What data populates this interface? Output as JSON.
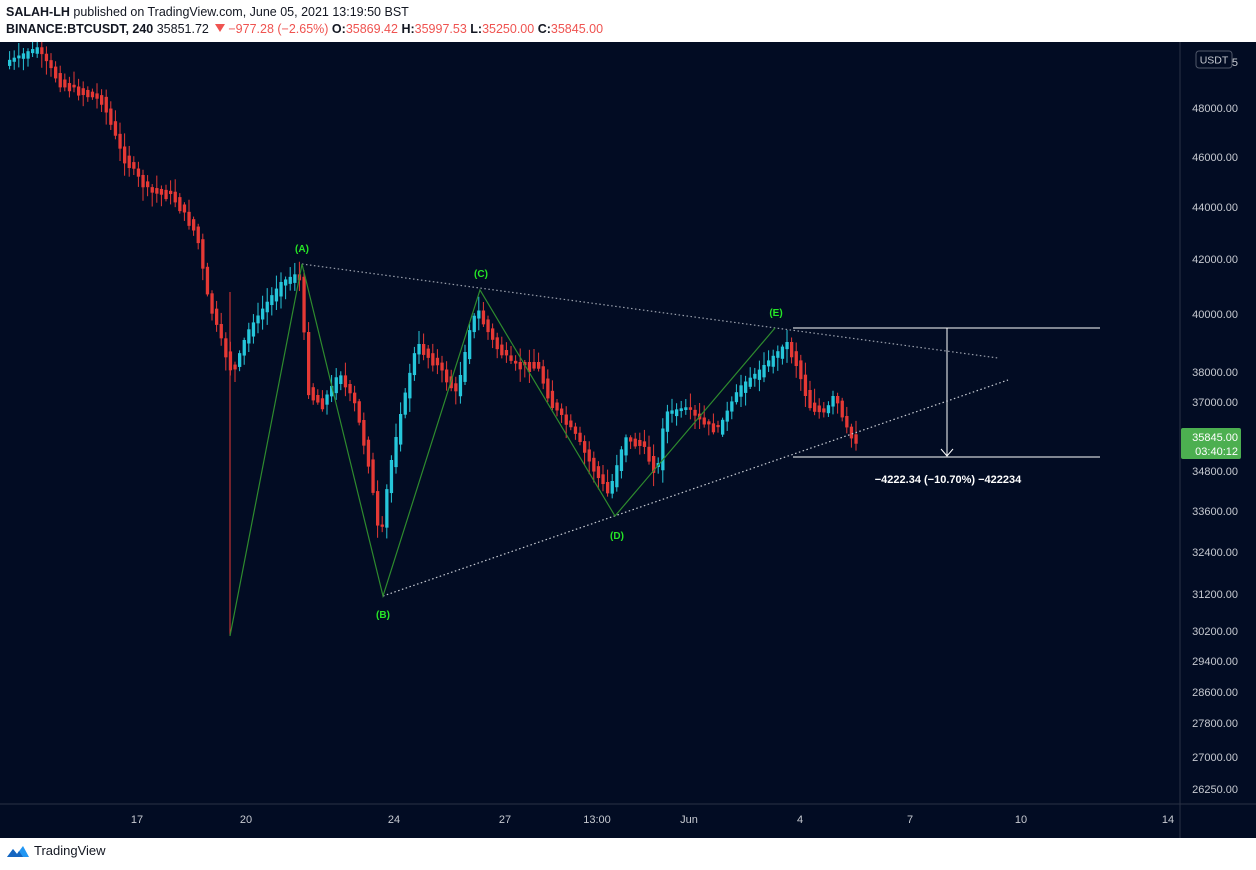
{
  "header": {
    "author": "SALAH-LH",
    "published_text": "published on TradingView.com, June 05, 2021 13:19:50 BST",
    "symbol": "BINANCE:BTCUSDT, 240",
    "last": "35851.72",
    "change": "−977.28 (−2.65%)",
    "open_label": "O:",
    "open": "35869.42",
    "high_label": "H:",
    "high": "35997.53",
    "low_label": "L:",
    "low": "35250.00",
    "close_label": "C:",
    "close": "35845.00"
  },
  "price_scale": {
    "currency": "USDT",
    "ticks": [
      "5",
      "48000.00",
      "46000.00",
      "44000.00",
      "42000.00",
      "40000.00",
      "38000.00",
      "37000.00",
      "34800.00",
      "33600.00",
      "32400.00",
      "31200.00",
      "30200.00",
      "29400.00",
      "28600.00",
      "27800.00",
      "27000.00",
      "26250.00"
    ],
    "current_price": "35845.00",
    "countdown": "03:40:12"
  },
  "time_axis": {
    "ticks": [
      "17",
      "20",
      "24",
      "27",
      "13:00",
      "Jun",
      "4",
      "7",
      "10",
      "14"
    ]
  },
  "wave_labels": [
    "(A)",
    "(B)",
    "(C)",
    "(D)",
    "(E)"
  ],
  "measure_label": "−4222.34 (−10.70%) −422234",
  "footer": {
    "brand": "TradingView"
  },
  "colors": {
    "background": "#020c23",
    "up_candle": "#26c6da",
    "down_candle": "#e53935",
    "wave_label": "#26e626",
    "wave_line": "#2e8b2e",
    "price_tag": "#4caf50"
  }
}
